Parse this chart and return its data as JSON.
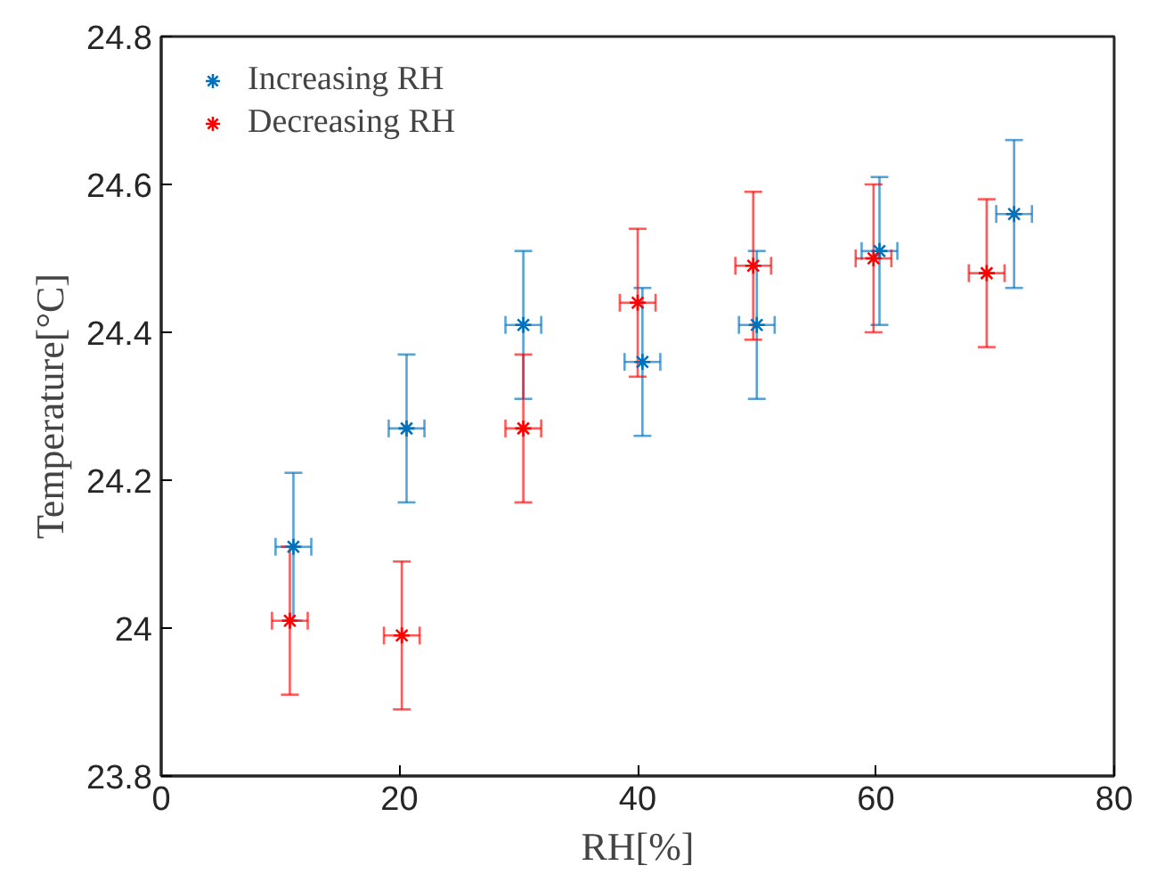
{
  "chart_data": {
    "type": "scatter",
    "xlabel": "RH[%]",
    "ylabel": "Temperature[°C]",
    "xlim": [
      0,
      80
    ],
    "xticks": [
      0,
      20,
      40,
      60,
      80
    ],
    "ylim": [
      23.8,
      24.8
    ],
    "yticks": [
      23.8,
      24,
      24.2,
      24.4,
      24.6,
      24.8
    ],
    "grid": false,
    "legend": "top left",
    "marker": "cross",
    "series": [
      {
        "name": "Increasing RH",
        "color": "#0072bd",
        "x": [
          11.1,
          20.6,
          30.4,
          40.4,
          50.0,
          60.3,
          71.6
        ],
        "values": [
          24.11,
          24.27,
          24.41,
          24.36,
          24.41,
          24.51,
          24.56
        ],
        "errors": [
          0.1,
          0.1,
          0.1,
          0.1,
          0.1,
          0.1,
          0.1
        ],
        "xerrors": [
          1.5,
          1.5,
          1.5,
          1.5,
          1.5,
          1.5,
          1.5
        ]
      },
      {
        "name": "Decreasing RH",
        "color": "#ff0000",
        "x": [
          10.8,
          20.2,
          30.4,
          40.0,
          49.7,
          59.8,
          69.3
        ],
        "values": [
          24.01,
          23.99,
          24.27,
          24.44,
          24.49,
          24.5,
          24.48
        ],
        "errors": [
          0.1,
          0.1,
          0.1,
          0.1,
          0.1,
          0.1,
          0.1
        ],
        "xerrors": [
          1.5,
          1.5,
          1.5,
          1.5,
          1.5,
          1.5,
          1.5
        ]
      }
    ]
  }
}
